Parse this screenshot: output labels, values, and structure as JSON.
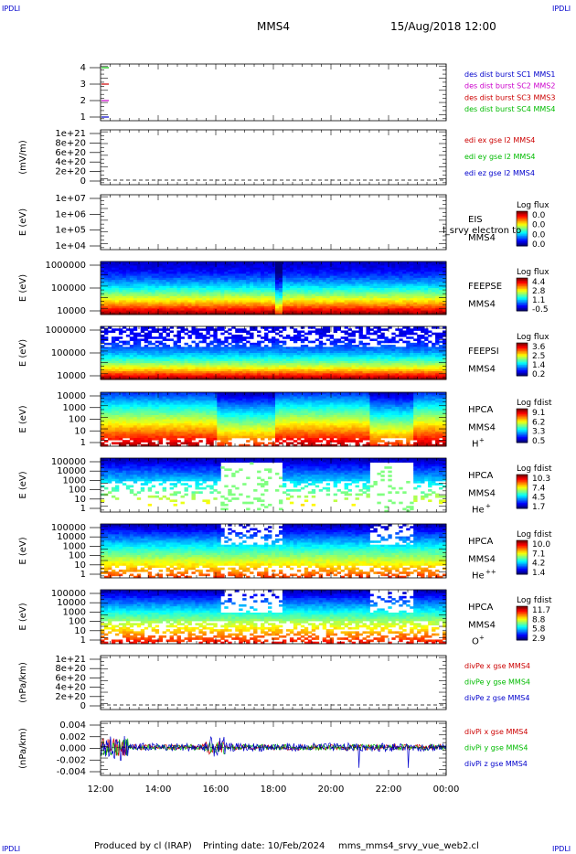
{
  "header": {
    "corner_label": "IPDLI",
    "title": "MMS4",
    "datetime": "15/Aug/2018 12:00"
  },
  "footer": {
    "produced_by": "Produced by cl (IRAP)",
    "printing_date": "Printing date: 10/Feb/2024",
    "filename": "mms_mms4_srvy_vue_web2.cl"
  },
  "colors": {
    "mms1": "#0000cc",
    "mms2": "#cc00cc",
    "mms3": "#cc0000",
    "mms4": "#00bb00",
    "x_component": "#cc0000",
    "y_component": "#00bb00",
    "z_component": "#0000cc"
  },
  "chart_data": [
    {
      "id": "burst",
      "type": "line",
      "y_ticks": [
        "4",
        "3",
        "2",
        "1"
      ],
      "y_values": [
        4,
        3,
        2,
        1
      ],
      "legend": [
        {
          "text": "des dist burst SC1 MMS1",
          "color": "#0000cc"
        },
        {
          "text": "des dist burst SC2 MMS2",
          "color": "#cc00cc"
        },
        {
          "text": "des dist burst SC3 MMS3",
          "color": "#cc0000"
        },
        {
          "text": "des dist burst SC4 MMS4",
          "color": "#00bb00"
        }
      ]
    },
    {
      "id": "edi",
      "type": "line",
      "ylabel": "(mV/m)",
      "y_ticks": [
        "1e+21",
        "8e+20",
        "6e+20",
        "4e+20",
        "2e+20",
        "0"
      ],
      "ylim": [
        0,
        1e+21
      ],
      "legend": [
        {
          "text": "edi ex gse l2 MMS4",
          "color": "#cc0000"
        },
        {
          "text": "edi ey gse l2 MMS4",
          "color": "#00bb00"
        },
        {
          "text": "edi ez gse l2 MMS4",
          "color": "#0000cc"
        }
      ]
    },
    {
      "id": "eis",
      "type": "heatmap",
      "ylabel": "E (eV)",
      "y_ticks": [
        "1e+07",
        "1e+06",
        "1e+05",
        "1e+04"
      ],
      "label_lines": [
        "EIS",
        "MMS4"
      ],
      "overlay_text": "l_srvy electron to",
      "colorbar_title": "Log flux",
      "colorbar_ticks": [
        "0.0",
        "0.0",
        "0.0",
        "0.0"
      ]
    },
    {
      "id": "feepse",
      "type": "heatmap",
      "ylabel": "E (eV)",
      "y_ticks": [
        "1000000",
        "100000",
        "10000"
      ],
      "label_lines": [
        "FEEPSE",
        "MMS4"
      ],
      "colorbar_title": "Log flux",
      "colorbar_ticks": [
        "4.4",
        "2.8",
        "1.1",
        "-0.5"
      ]
    },
    {
      "id": "feepsi",
      "type": "heatmap",
      "ylabel": "E (eV)",
      "y_ticks": [
        "1000000",
        "100000",
        "10000"
      ],
      "label_lines": [
        "FEEPSI",
        "MMS4"
      ],
      "colorbar_title": "Log flux",
      "colorbar_ticks": [
        "3.6",
        "2.5",
        "1.4",
        "0.2"
      ]
    },
    {
      "id": "hpca_h",
      "type": "heatmap",
      "ylabel": "E (eV)",
      "y_ticks": [
        "10000",
        "1000",
        "100",
        "10",
        "1"
      ],
      "label_lines": [
        "HPCA",
        "MMS4"
      ],
      "species": "H",
      "species_charge": "+",
      "colorbar_title": "Log fdist",
      "colorbar_ticks": [
        "9.1",
        "6.2",
        "3.3",
        "0.5"
      ]
    },
    {
      "id": "hpca_he1",
      "type": "heatmap",
      "ylabel": "E (eV)",
      "y_ticks": [
        "100000",
        "10000",
        "1000",
        "100",
        "10",
        "1"
      ],
      "label_lines": [
        "HPCA",
        "MMS4"
      ],
      "species": "He",
      "species_charge": "+",
      "colorbar_title": "Log fdist",
      "colorbar_ticks": [
        "10.3",
        "7.4",
        "4.5",
        "1.7"
      ]
    },
    {
      "id": "hpca_he2",
      "type": "heatmap",
      "ylabel": "E (eV)",
      "y_ticks": [
        "100000",
        "10000",
        "1000",
        "100",
        "10",
        "1"
      ],
      "label_lines": [
        "HPCA",
        "MMS4"
      ],
      "species": "He",
      "species_charge": "++",
      "colorbar_title": "Log fdist",
      "colorbar_ticks": [
        "10.0",
        "7.1",
        "4.2",
        "1.4"
      ]
    },
    {
      "id": "hpca_o",
      "type": "heatmap",
      "ylabel": "E (eV)",
      "y_ticks": [
        "100000",
        "10000",
        "1000",
        "100",
        "10",
        "1"
      ],
      "label_lines": [
        "HPCA",
        "MMS4"
      ],
      "species": "O",
      "species_charge": "+",
      "colorbar_title": "Log fdist",
      "colorbar_ticks": [
        "11.7",
        "8.8",
        "5.8",
        "2.9"
      ]
    },
    {
      "id": "divpe",
      "type": "line",
      "ylabel": "(nPa/km)",
      "y_ticks": [
        "1e+21",
        "8e+20",
        "6e+20",
        "4e+20",
        "2e+20",
        "0"
      ],
      "ylim": [
        0,
        1e+21
      ],
      "legend": [
        {
          "text": "divPe x gse MMS4",
          "color": "#cc0000"
        },
        {
          "text": "divPe y gse MMS4",
          "color": "#00bb00"
        },
        {
          "text": "divPe z gse MMS4",
          "color": "#0000cc"
        }
      ]
    },
    {
      "id": "divpi",
      "type": "line",
      "ylabel": "(nPa/km)",
      "y_ticks": [
        "0.004",
        "0.002",
        "0.000",
        "-0.002",
        "-0.004"
      ],
      "ylim": [
        -0.006,
        0.0055
      ],
      "legend": [
        {
          "text": "divPi x gse MMS4",
          "color": "#cc0000"
        },
        {
          "text": "divPi y gse MMS4",
          "color": "#00bb00"
        },
        {
          "text": "divPi z gse MMS4",
          "color": "#0000cc"
        }
      ]
    }
  ],
  "x_axis": {
    "ticks": [
      "12:00",
      "14:00",
      "16:00",
      "18:00",
      "20:00",
      "22:00",
      "00:00"
    ]
  }
}
